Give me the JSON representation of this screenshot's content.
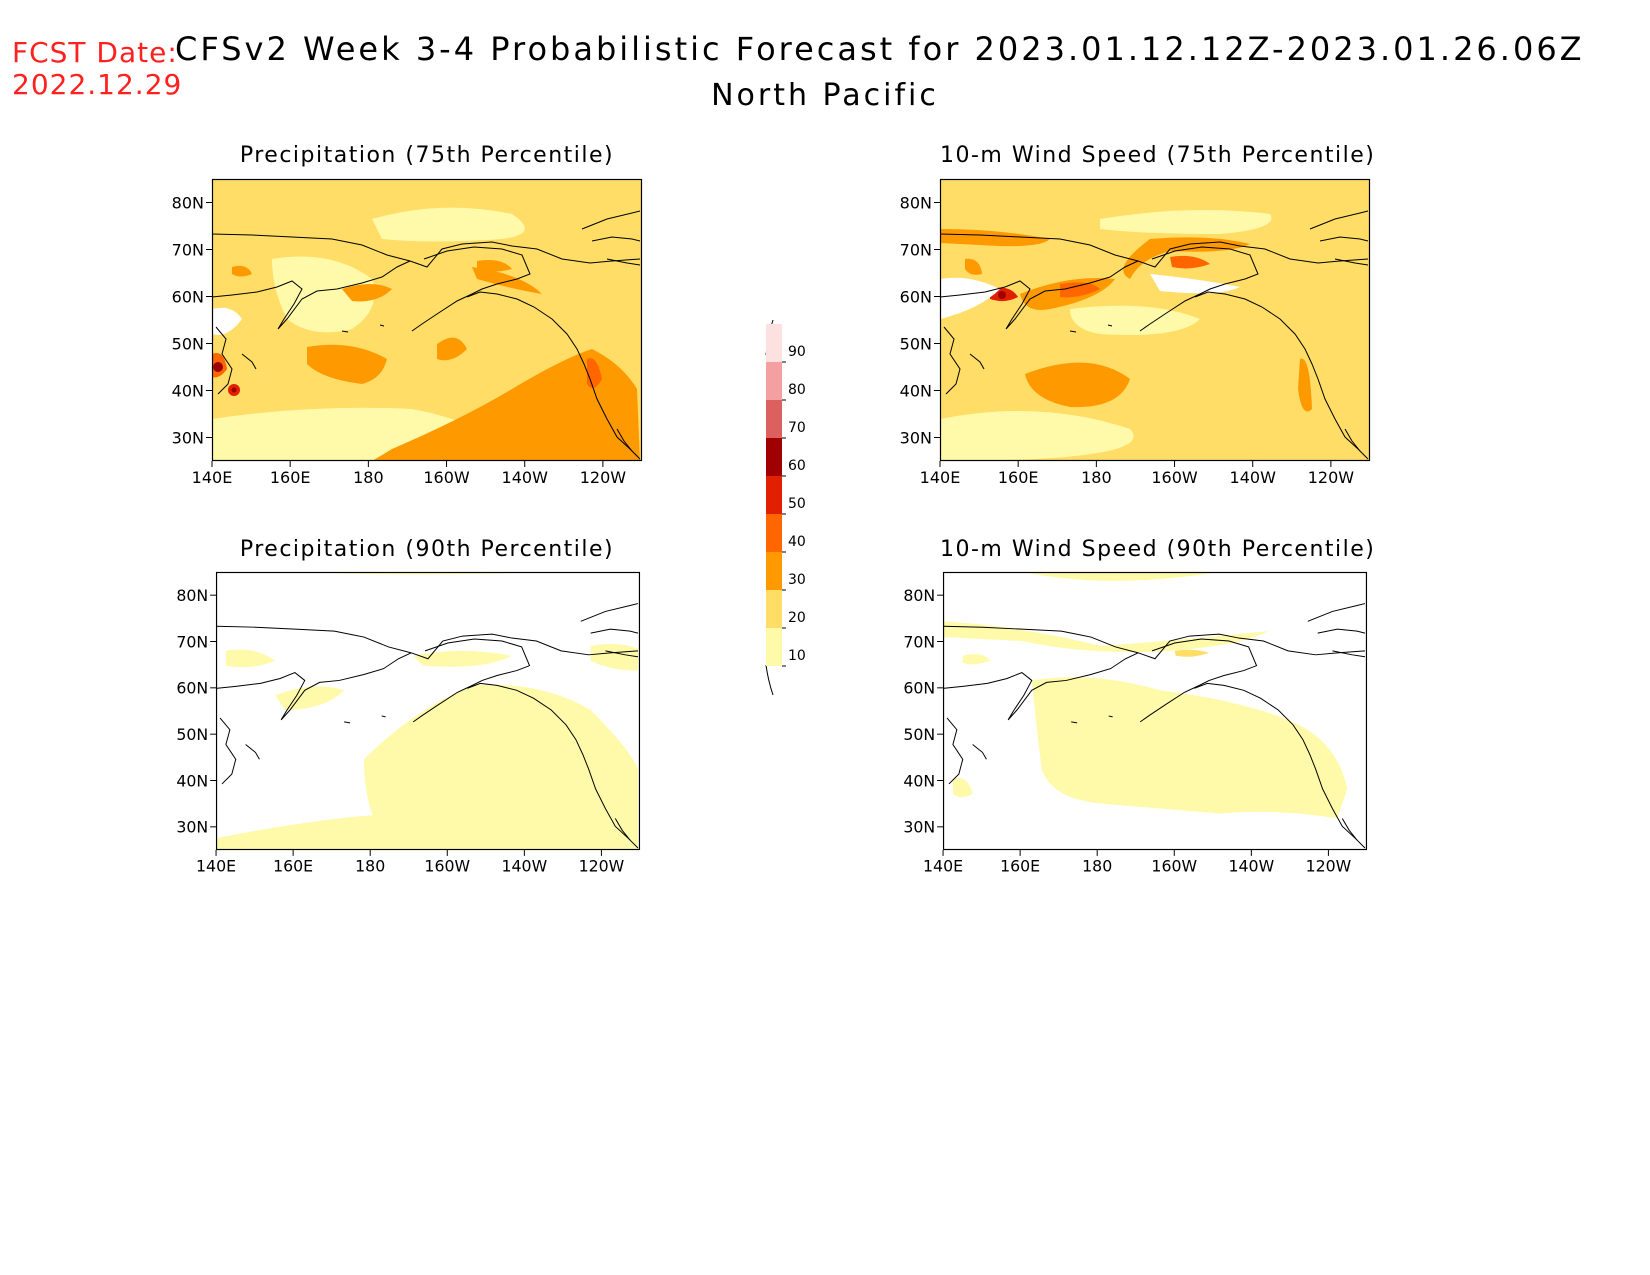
{
  "header": {
    "fcst_label": "FCST Date:",
    "fcst_date": "2022.12.29",
    "title": "CFSv2 Week 3-4 Probabilistic Forecast for 2023.01.12.12Z-2023.01.26.06Z",
    "region": "North Pacific"
  },
  "panels": [
    {
      "id": "precip75",
      "title": "Precipitation (75th Percentile)"
    },
    {
      "id": "wind75",
      "title": "10-m Wind Speed (75th Percentile)"
    },
    {
      "id": "precip90",
      "title": "Precipitation (90th Percentile)"
    },
    {
      "id": "wind90",
      "title": "10-m Wind Speed (90th Percentile)"
    }
  ],
  "axes": {
    "lat_labels": [
      "80N",
      "70N",
      "60N",
      "50N",
      "40N",
      "30N"
    ],
    "lon_labels": [
      "140E",
      "160E",
      "180",
      "160W",
      "140W",
      "120W"
    ]
  },
  "colorbar": {
    "levels": [
      "90",
      "80",
      "70",
      "60",
      "50",
      "40",
      "30",
      "20",
      "10"
    ],
    "colors": [
      "#fde0e0",
      "#f4a0a0",
      "#dd6060",
      "#a00000",
      "#e02000",
      "#ff6600",
      "#ff9900",
      "#ffdd66",
      "#fffaaa"
    ]
  },
  "palette": {
    "level_10": "#fffaaa",
    "level_20": "#ffdd66",
    "level_30": "#ff9900",
    "level_40": "#ff6600",
    "level_50": "#e02000",
    "level_60": "#a00000",
    "header_red": "#ff2020"
  }
}
